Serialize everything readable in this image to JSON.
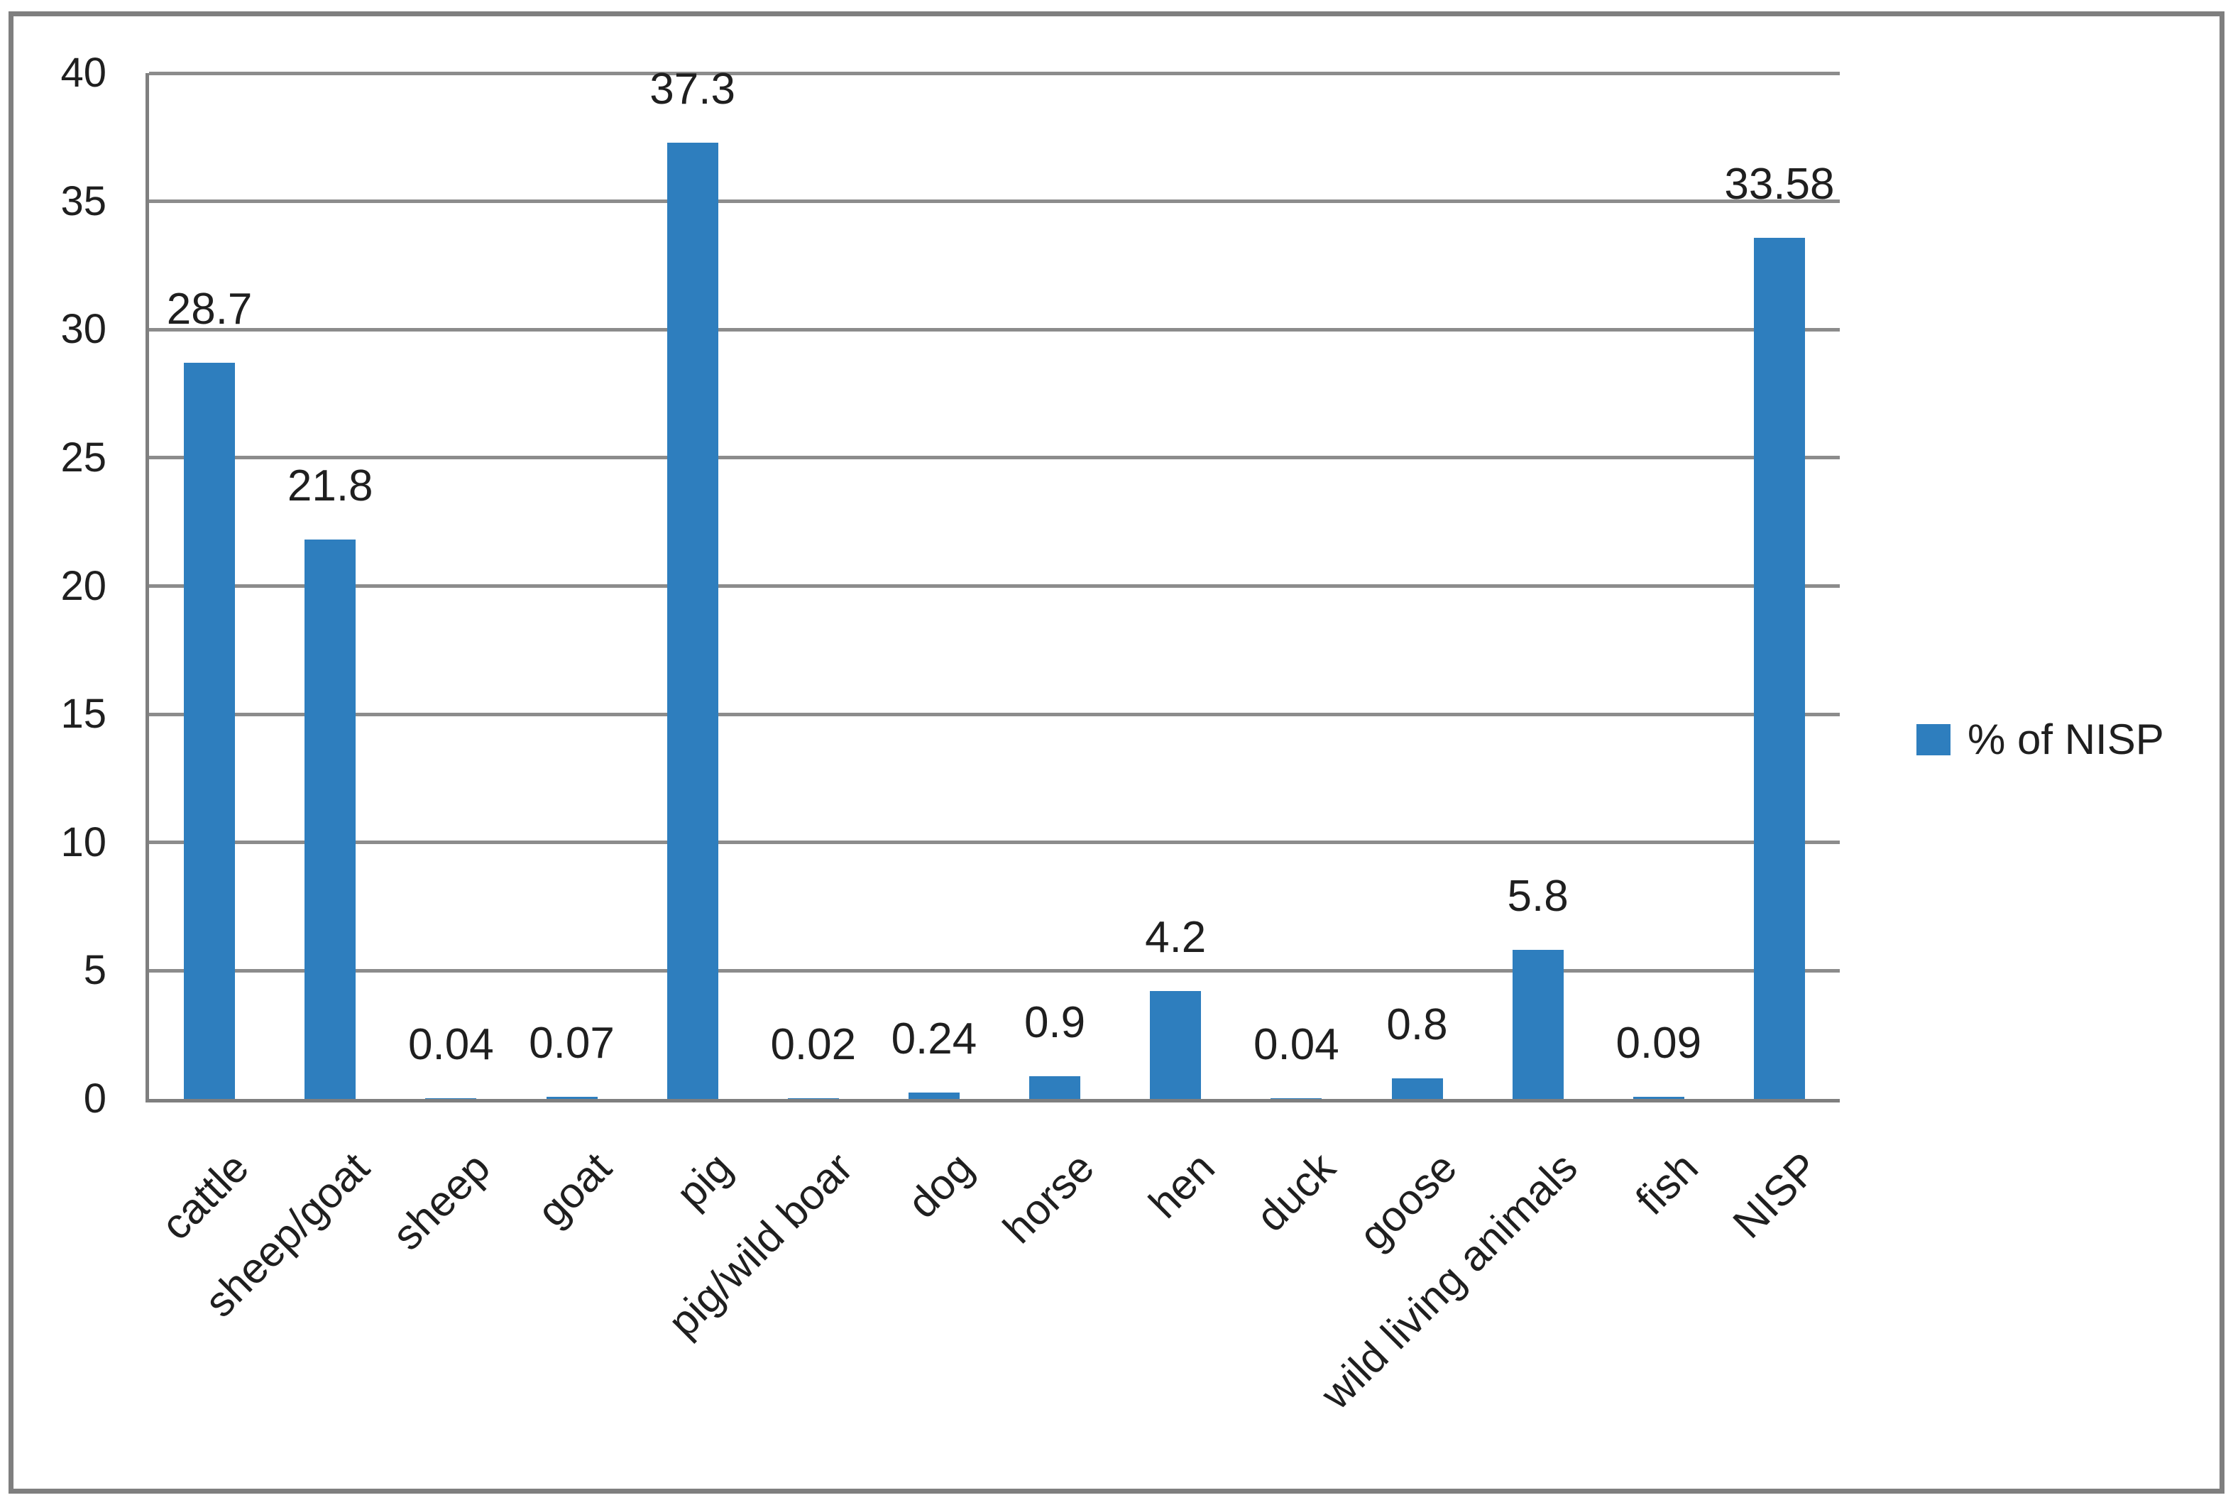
{
  "chart_data": {
    "type": "bar",
    "title": "",
    "categories": [
      "cattle",
      "sheep/goat",
      "sheep",
      "goat",
      "pig",
      "pig/wild boar",
      "dog",
      "horse",
      "hen",
      "duck",
      "goose",
      "wild living animals",
      "fish",
      "NISP"
    ],
    "series": [
      {
        "name": "% of NISP",
        "values": [
          28.7,
          21.8,
          0.04,
          0.07,
          37.3,
          0.02,
          0.24,
          0.9,
          4.2,
          0.04,
          0.8,
          5.8,
          0.09,
          33.58
        ]
      }
    ],
    "data_labels": [
      "28.7",
      "21.8",
      "0.04",
      "0.07",
      "37.3",
      "0.02",
      "0.24",
      "0.9",
      "4.2",
      "0.04",
      "0.8",
      "5.8",
      "0.09",
      "33.58"
    ],
    "xlabel": "",
    "ylabel": "",
    "ylim": [
      0,
      40
    ],
    "yticks": [
      0,
      5,
      10,
      15,
      20,
      25,
      30,
      35,
      40
    ],
    "grid": true,
    "legend_position": "right",
    "category_label_rotation_deg": -45,
    "bar_color": "#2E7EBE",
    "gridline_color": "#8C8C8C",
    "axis_color": "#7F7F7F",
    "frame_color": "#7F7F7F",
    "text_color": "#1F1F1F"
  }
}
